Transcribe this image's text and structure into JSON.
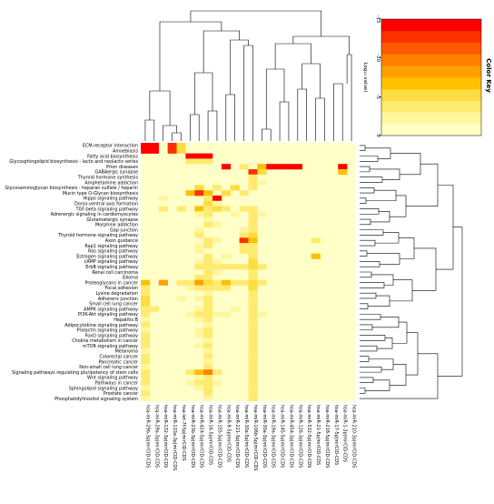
{
  "chart_data": {
    "type": "heatmap",
    "title": "",
    "color_key": {
      "title": "Color Key",
      "axis_label": "Log₁₀ value)",
      "ticks": [
        "-15",
        "-10",
        "-5",
        "0"
      ],
      "range": [
        -15,
        0
      ],
      "colors": [
        "#ffffc8",
        "#fff7a0",
        "#ffeb70",
        "#ffdc40",
        "#ffc000",
        "#ffa000",
        "#ff8000",
        "#ff5a00",
        "#ff3000",
        "#ff0000"
      ]
    },
    "legend_position": "top-right",
    "dendrograms": {
      "rows": "right",
      "columns": "top"
    },
    "row_labels": [
      "ECM-receptor interaction",
      "Amoebiasis",
      "Fatty acid biosynthesis",
      "Glycosphingolipid biosynthesis - lacto and neolacto series",
      "Prion diseases",
      "GABAergic synapse",
      "Thyroid hormone synthesis",
      "Amphetamine addiction",
      "Glycosaminoglycan biosynthesis - heparan sulfate / heparin",
      "Mucin type O-Glycan biosynthesis",
      "Hippo signaling pathway",
      "Dorso-ventral axis formation",
      "TGF-beta signaling pathway",
      "Adrenergic signaling in cardiomyocytes",
      "Glutamatergic synapse",
      "Morphine addiction",
      "Gap junction",
      "Thyroid hormone signaling pathway",
      "Axon guidance",
      "Rap1 signaling pathway",
      "Ras signaling pathway",
      "Estrogen signaling pathway",
      "cAMP signaling pathway",
      "ErbB signaling pathway",
      "Renal cell carcinoma",
      "Glioma",
      "Proteoglycans in cancer",
      "Focal adhesion",
      "Lysine degradation",
      "Adherens junction",
      "Small cell lung cancer",
      "AMPK signaling pathway",
      "PI3K-Akt signaling pathway",
      "Hepatitis B",
      "Adipocytokine signaling pathway",
      "Prolactin signaling pathway",
      "FoxO signaling pathway",
      "Choline metabolism in cancer",
      "mTOR signaling pathway",
      "Melanoma",
      "Colorectal cancer",
      "Pancreatic cancer",
      "Non-small cell lung cancer",
      "Signaling pathways regulating pluripotency of stem cells",
      "Wnt signaling pathway",
      "Pathways in cancer",
      "Sphingolipid signaling pathway",
      "Prostate cancer",
      "Phosphatidylinositol signaling system"
    ],
    "col_labels": [
      "hsa-miR-29b-3p|mirCID-CDS",
      "hsa-miR-29a-3p|mirCID-CDS",
      "hsa-miR-132-3p|mirCID-CDS",
      "hsa-miR-133a-3p|mirCID-CDS",
      "hsa-let-7f-5p|mirCID-CDS",
      "hsa-miR-23b-3p|mirCID-CDS",
      "hsa-miR-424-5p|mirCID-CDS",
      "hsa-miR-16-5p|mirCID-CDS",
      "hsa-miR-155-5p|mirCID-CDS",
      "hsa-miR-9-5p|mirCID-CDS",
      "hsa-miR-221-3p|mirCID-CDS",
      "hsa-miR-30a-5p|mirCID-CDS",
      "hsa-miR-106b-5p|mirCID-CDS",
      "hsa-miR-30a-3p|mirCID-CDS",
      "hsa-miR-19a-3p|mirCID-CDS",
      "hsa-miR-145-5p|mirCID-CDS",
      "hsa-miR-454-3p|mirCID-CDS",
      "hsa-miR-126-3p|mirCID-CDS",
      "hsa-miR-532-5p|mirCID-CDS",
      "hsa-miR-21-5p|mirCID-CDS",
      "hsa-miR-218-5p|mirCID-CDS",
      "hsa-miR-17-5p|mirCID-CDS",
      "hsa-miR-1-3p|mirCID-CDS",
      "hsa-miR-210-3p|mirCID-CDS"
    ],
    "values": [
      [
        -15,
        -15,
        0,
        -12,
        -5,
        0,
        0,
        0,
        0,
        0,
        0,
        0,
        0,
        0,
        0,
        0,
        0,
        0,
        0,
        0,
        0,
        0,
        0,
        0
      ],
      [
        -15,
        -15,
        0,
        -12,
        -5,
        0,
        0,
        0,
        0,
        0,
        0,
        0,
        0,
        0,
        0,
        0,
        0,
        0,
        0,
        0,
        0,
        0,
        0,
        0
      ],
      [
        0,
        0,
        0,
        0,
        0,
        -14,
        -14,
        -14,
        0,
        0,
        0,
        0,
        0,
        0,
        0,
        0,
        0,
        0,
        0,
        0,
        0,
        0,
        0,
        0
      ],
      [
        0,
        0,
        0,
        0,
        0,
        -3,
        -4,
        -3,
        0,
        0,
        0,
        0,
        0,
        0,
        0,
        0,
        0,
        0,
        0,
        0,
        0,
        0,
        0,
        0
      ],
      [
        0,
        0,
        0,
        0,
        0,
        0,
        0,
        0,
        0,
        -14,
        0,
        -4,
        0,
        -6,
        -14,
        -14,
        -15,
        -15,
        0,
        0,
        0,
        0,
        -14,
        0
      ],
      [
        0,
        0,
        0,
        0,
        0,
        0,
        0,
        0,
        0,
        0,
        0,
        0,
        -12,
        -5,
        0,
        0,
        0,
        0,
        0,
        0,
        0,
        0,
        -6,
        0
      ],
      [
        0,
        0,
        0,
        0,
        0,
        0,
        0,
        0,
        0,
        0,
        0,
        0,
        -3,
        0,
        0,
        0,
        0,
        0,
        0,
        0,
        0,
        0,
        0,
        0
      ],
      [
        0,
        0,
        0,
        0,
        0,
        0,
        0,
        0,
        0,
        0,
        0,
        0,
        -4,
        -2,
        0,
        0,
        0,
        0,
        0,
        0,
        0,
        0,
        0,
        0
      ],
      [
        0,
        0,
        0,
        0,
        0,
        0,
        -5,
        0,
        -3,
        0,
        -5,
        0,
        -3,
        0,
        0,
        0,
        0,
        0,
        0,
        0,
        0,
        0,
        0,
        0
      ],
      [
        0,
        0,
        0,
        0,
        0,
        -6,
        -12,
        -7,
        0,
        -5,
        0,
        -3,
        0,
        0,
        0,
        0,
        0,
        0,
        0,
        0,
        0,
        0,
        0,
        0
      ],
      [
        0,
        0,
        -2,
        0,
        0,
        0,
        0,
        -3,
        -14,
        0,
        0,
        0,
        0,
        0,
        0,
        0,
        0,
        0,
        0,
        0,
        0,
        0,
        0,
        0
      ],
      [
        0,
        0,
        0,
        0,
        0,
        0,
        0,
        -5,
        -2,
        0,
        0,
        0,
        0,
        0,
        0,
        0,
        0,
        0,
        0,
        0,
        0,
        0,
        0,
        0
      ],
      [
        0,
        0,
        -3,
        0,
        -4,
        0,
        -7,
        -4,
        -5,
        -3,
        0,
        -4,
        -3,
        0,
        0,
        0,
        0,
        0,
        0,
        0,
        0,
        0,
        0,
        0
      ],
      [
        0,
        0,
        0,
        0,
        0,
        0,
        -2,
        -3,
        0,
        0,
        -2,
        0,
        -3,
        -2,
        0,
        0,
        0,
        0,
        0,
        0,
        0,
        0,
        0,
        0
      ],
      [
        0,
        0,
        0,
        0,
        0,
        0,
        0,
        -2,
        0,
        0,
        0,
        0,
        -3,
        0,
        0,
        0,
        0,
        0,
        0,
        0,
        0,
        0,
        0,
        0
      ],
      [
        0,
        0,
        0,
        0,
        0,
        0,
        0,
        -3,
        -2,
        0,
        0,
        0,
        -4,
        0,
        0,
        0,
        0,
        0,
        0,
        0,
        0,
        0,
        0,
        0
      ],
      [
        0,
        0,
        0,
        0,
        0,
        0,
        -2,
        0,
        0,
        0,
        0,
        -2,
        -3,
        0,
        0,
        0,
        0,
        0,
        0,
        0,
        0,
        0,
        0,
        0
      ],
      [
        0,
        0,
        0,
        0,
        0,
        0,
        -3,
        0,
        0,
        0,
        0,
        -3,
        -5,
        0,
        0,
        0,
        0,
        0,
        0,
        0,
        0,
        0,
        0,
        0
      ],
      [
        0,
        0,
        0,
        0,
        0,
        0,
        0,
        -3,
        -2,
        0,
        0,
        -12,
        -6,
        0,
        0,
        0,
        0,
        0,
        0,
        -3,
        0,
        0,
        0,
        0
      ],
      [
        0,
        0,
        0,
        0,
        0,
        0,
        -2,
        -3,
        0,
        0,
        0,
        -3,
        -3,
        0,
        0,
        0,
        0,
        0,
        0,
        0,
        0,
        0,
        0,
        0
      ],
      [
        0,
        0,
        0,
        0,
        0,
        0,
        -2,
        0,
        0,
        0,
        0,
        -4,
        -4,
        0,
        0,
        0,
        0,
        0,
        0,
        0,
        0,
        0,
        0,
        0
      ],
      [
        0,
        0,
        0,
        0,
        0,
        0,
        0,
        -4,
        0,
        -2,
        0,
        0,
        -3,
        0,
        0,
        0,
        0,
        0,
        0,
        -7,
        0,
        0,
        0,
        0
      ],
      [
        0,
        0,
        0,
        0,
        0,
        0,
        -2,
        -3,
        -2,
        0,
        0,
        0,
        -5,
        0,
        0,
        0,
        0,
        0,
        0,
        0,
        0,
        0,
        0,
        0
      ],
      [
        0,
        0,
        0,
        0,
        0,
        0,
        -3,
        -4,
        -3,
        -3,
        -3,
        -4,
        -5,
        -3,
        0,
        0,
        0,
        0,
        0,
        0,
        0,
        0,
        0,
        0
      ],
      [
        0,
        0,
        0,
        0,
        0,
        0,
        0,
        -3,
        -2,
        0,
        0,
        0,
        -3,
        0,
        0,
        0,
        0,
        0,
        0,
        0,
        0,
        0,
        0,
        0
      ],
      [
        0,
        0,
        0,
        0,
        0,
        0,
        -3,
        -3,
        0,
        0,
        0,
        0,
        -4,
        0,
        0,
        0,
        0,
        0,
        0,
        0,
        0,
        0,
        0,
        0
      ],
      [
        -6,
        0,
        -8,
        0,
        -3,
        -4,
        -8,
        -5,
        -4,
        -6,
        -4,
        -3,
        -5,
        -4,
        0,
        0,
        0,
        0,
        0,
        0,
        0,
        0,
        0,
        0
      ],
      [
        -4,
        0,
        0,
        0,
        0,
        -2,
        -3,
        -4,
        -3,
        -3,
        0,
        0,
        -5,
        0,
        0,
        0,
        0,
        0,
        0,
        0,
        0,
        0,
        0,
        0
      ],
      [
        -3,
        0,
        0,
        0,
        0,
        0,
        0,
        -2,
        0,
        0,
        0,
        0,
        -3,
        0,
        0,
        0,
        0,
        0,
        0,
        0,
        0,
        0,
        0,
        0
      ],
      [
        -5,
        0,
        0,
        0,
        -2,
        0,
        -2,
        -3,
        0,
        0,
        0,
        0,
        -3,
        0,
        0,
        0,
        0,
        0,
        0,
        0,
        0,
        0,
        0,
        0
      ],
      [
        -5,
        0,
        0,
        0,
        0,
        0,
        0,
        -3,
        0,
        0,
        0,
        0,
        -4,
        0,
        0,
        0,
        0,
        0,
        0,
        0,
        0,
        0,
        0,
        0
      ],
      [
        -3,
        -3,
        0,
        0,
        0,
        0,
        -2,
        -3,
        0,
        0,
        -2,
        0,
        -3,
        0,
        0,
        0,
        0,
        0,
        0,
        0,
        0,
        0,
        0,
        0
      ],
      [
        -3,
        0,
        0,
        0,
        0,
        -2,
        -3,
        -4,
        -2,
        -2,
        0,
        0,
        -4,
        -2,
        0,
        0,
        0,
        0,
        0,
        0,
        0,
        0,
        0,
        0
      ],
      [
        -2,
        0,
        0,
        0,
        0,
        0,
        -2,
        -3,
        0,
        0,
        0,
        0,
        -3,
        0,
        0,
        0,
        0,
        0,
        0,
        0,
        0,
        0,
        0,
        0
      ],
      [
        -3,
        0,
        0,
        0,
        0,
        0,
        0,
        -2,
        0,
        0,
        0,
        0,
        -3,
        0,
        0,
        0,
        0,
        0,
        0,
        0,
        0,
        0,
        0,
        0
      ],
      [
        -2,
        0,
        0,
        0,
        0,
        0,
        -2,
        -3,
        0,
        0,
        0,
        0,
        -3,
        0,
        0,
        0,
        0,
        0,
        0,
        0,
        0,
        0,
        0,
        0
      ],
      [
        -3,
        0,
        0,
        0,
        0,
        0,
        -2,
        -3,
        0,
        0,
        0,
        0,
        -4,
        0,
        0,
        0,
        0,
        0,
        0,
        0,
        0,
        0,
        0,
        0
      ],
      [
        -3,
        0,
        0,
        0,
        0,
        0,
        0,
        -2,
        0,
        0,
        0,
        0,
        -3,
        0,
        0,
        0,
        0,
        0,
        0,
        0,
        0,
        0,
        0,
        0
      ],
      [
        -3,
        0,
        0,
        0,
        0,
        0,
        -2,
        -3,
        0,
        0,
        0,
        0,
        -3,
        0,
        0,
        0,
        0,
        0,
        0,
        0,
        0,
        0,
        0,
        0
      ],
      [
        -2,
        0,
        0,
        0,
        0,
        0,
        0,
        -2,
        0,
        0,
        0,
        0,
        -3,
        0,
        0,
        0,
        0,
        0,
        0,
        0,
        0,
        0,
        0,
        0
      ],
      [
        -3,
        0,
        0,
        0,
        0,
        0,
        0,
        -3,
        0,
        0,
        0,
        0,
        -3,
        0,
        0,
        0,
        0,
        0,
        0,
        0,
        0,
        0,
        0,
        0
      ],
      [
        -3,
        0,
        0,
        0,
        0,
        0,
        0,
        -2,
        0,
        0,
        0,
        0,
        -3,
        0,
        0,
        0,
        0,
        0,
        0,
        0,
        0,
        0,
        0,
        0
      ],
      [
        -2,
        0,
        0,
        0,
        0,
        0,
        0,
        -3,
        0,
        0,
        0,
        0,
        -3,
        0,
        0,
        0,
        0,
        0,
        0,
        0,
        0,
        0,
        0,
        0
      ],
      [
        -3,
        0,
        0,
        0,
        0,
        -3,
        -6,
        -10,
        -3,
        0,
        0,
        0,
        -4,
        0,
        0,
        0,
        0,
        0,
        0,
        0,
        0,
        0,
        0,
        0
      ],
      [
        -3,
        0,
        0,
        0,
        0,
        0,
        -2,
        -3,
        0,
        0,
        0,
        0,
        -4,
        0,
        0,
        0,
        0,
        0,
        0,
        0,
        0,
        0,
        0,
        0
      ],
      [
        -3,
        0,
        0,
        0,
        0,
        -2,
        -3,
        -4,
        -2,
        0,
        0,
        0,
        -4,
        0,
        0,
        0,
        0,
        0,
        0,
        0,
        0,
        0,
        0,
        0
      ],
      [
        -2,
        0,
        0,
        0,
        0,
        0,
        -2,
        -3,
        0,
        0,
        0,
        0,
        -3,
        0,
        0,
        0,
        0,
        0,
        0,
        0,
        0,
        0,
        0,
        0
      ],
      [
        -3,
        0,
        0,
        0,
        0,
        0,
        0,
        -3,
        0,
        0,
        0,
        0,
        -3,
        0,
        0,
        0,
        0,
        0,
        0,
        0,
        0,
        0,
        0,
        0
      ],
      [
        -2,
        0,
        0,
        0,
        0,
        0,
        0,
        -2,
        0,
        0,
        0,
        0,
        -3,
        0,
        0,
        0,
        0,
        0,
        0,
        0,
        0,
        0,
        0,
        0
      ]
    ]
  }
}
